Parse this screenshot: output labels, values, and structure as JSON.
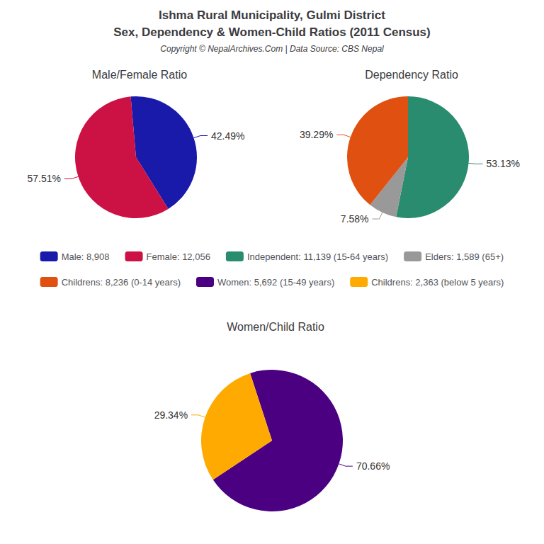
{
  "title": "Ishma Rural Municipality, Gulmi District",
  "subtitle": "Sex, Dependency & Women-Child Ratios (2011 Census)",
  "annotations": [
    "Copyright © NepalArchives.Com | Data Source: CBS Nepal"
  ],
  "chart_data": [
    {
      "type": "pie",
      "title": "Male/Female Ratio",
      "categories": [
        "Male: 8,908",
        "Female: 12,056"
      ],
      "values": [
        42.49,
        57.51
      ],
      "value_labels": [
        "42.49%",
        "57.51%"
      ],
      "colors": [
        "#1a1aaa",
        "#cc1144"
      ],
      "data_labels": true
    },
    {
      "type": "pie",
      "title": "Dependency Ratio",
      "categories": [
        "Independent: 11,139 (15-64 years)",
        "Elders: 1,589 (65+)",
        "Childrens: 8,236 (0-14 years)"
      ],
      "values": [
        53.13,
        7.58,
        39.29
      ],
      "value_labels": [
        "53.13%",
        "7.58%",
        "39.29%"
      ],
      "colors": [
        "#2a8c6e",
        "#999999",
        "#e05010"
      ],
      "data_labels": true
    },
    {
      "type": "pie",
      "title": "Women/Child Ratio",
      "categories": [
        "Women: 5,692 (15-49 years)",
        "Childrens: 2,363 (below 5 years)"
      ],
      "values": [
        70.66,
        29.34
      ],
      "value_labels": [
        "70.66%",
        "29.34%"
      ],
      "colors": [
        "#4b0082",
        "#ffaa00"
      ],
      "data_labels": true
    }
  ]
}
